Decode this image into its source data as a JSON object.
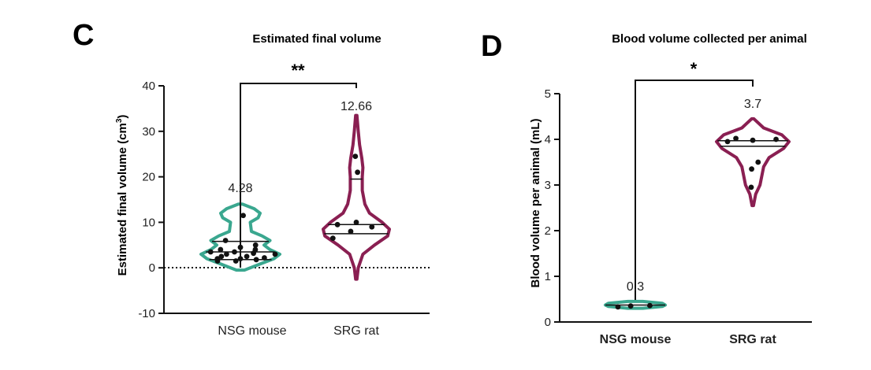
{
  "colors": {
    "teal": "#3aa78f",
    "maroon": "#8a1f52",
    "axis": "#111111"
  },
  "chart_data": [
    {
      "panel": "C",
      "type": "violin",
      "title": "Estimated final volume",
      "ylabel_main": "Estimated final volume (cm",
      "ylabel_sup": "3",
      "ylabel_tail": ")",
      "xlabel": "",
      "ylim": [
        -10,
        40
      ],
      "yticks": [
        "-10",
        "0",
        "10",
        "20",
        "30",
        "40"
      ],
      "ytick_values": [
        -10,
        0,
        10,
        20,
        30,
        40
      ],
      "reference_line": 0,
      "significance": "**",
      "categories": [
        "NSG mouse",
        "SRG rat"
      ],
      "series": [
        {
          "category": "NSG mouse",
          "color": "#3aa78f",
          "label": "4.28",
          "range": [
            -0.5,
            14
          ],
          "quartiles": [
            1.8,
            3.5,
            5.8
          ],
          "points": [
            1.5,
            1.5,
            1.8,
            2.0,
            2.0,
            2.2,
            2.5,
            2.5,
            3.0,
            3.0,
            3.2,
            3.5,
            3.5,
            4.0,
            4.0,
            4.5,
            5.0,
            6.0,
            11.5
          ],
          "shape": [
            [
              -0.5,
              0.1
            ],
            [
              1,
              0.55
            ],
            [
              2,
              0.85
            ],
            [
              3,
              1.0
            ],
            [
              4,
              0.75
            ],
            [
              5,
              0.6
            ],
            [
              6,
              0.75
            ],
            [
              7,
              0.55
            ],
            [
              8,
              0.28
            ],
            [
              10,
              0.25
            ],
            [
              11,
              0.45
            ],
            [
              12,
              0.5
            ],
            [
              13,
              0.35
            ],
            [
              14,
              0.05
            ]
          ]
        },
        {
          "category": "SRG rat",
          "color": "#8a1f52",
          "label": "12.66",
          "range": [
            -2.5,
            33.5
          ],
          "quartiles": [
            7.5,
            9.5,
            19.5
          ],
          "points": [
            6.5,
            8.0,
            9.0,
            9.5,
            10.0,
            21.0,
            24.5
          ],
          "shape": [
            [
              -2.5,
              0.02
            ],
            [
              0,
              0.06
            ],
            [
              3,
              0.2
            ],
            [
              5,
              0.55
            ],
            [
              7,
              0.95
            ],
            [
              8.5,
              1.0
            ],
            [
              10,
              0.78
            ],
            [
              12,
              0.4
            ],
            [
              14,
              0.26
            ],
            [
              17,
              0.18
            ],
            [
              20,
              0.18
            ],
            [
              22,
              0.2
            ],
            [
              24,
              0.17
            ],
            [
              27,
              0.1
            ],
            [
              30,
              0.06
            ],
            [
              33.5,
              0.02
            ]
          ]
        }
      ]
    },
    {
      "panel": "D",
      "type": "violin",
      "title": "Blood volume collected per animal",
      "ylabel_main": "Blood volume per animal (mL)",
      "xlabel": "",
      "ylim": [
        0,
        5
      ],
      "yticks": [
        "0",
        "1",
        "2",
        "3",
        "4",
        "5"
      ],
      "ytick_values": [
        0,
        1,
        2,
        3,
        4,
        5
      ],
      "significance": "*",
      "categories": [
        "NSG mouse",
        "SRG rat"
      ],
      "series": [
        {
          "category": "NSG mouse",
          "color": "#3aa78f",
          "label": "0.3",
          "range": [
            0.3,
            0.45
          ],
          "quartiles": [
            0.37
          ],
          "points": [
            0.33,
            0.35,
            0.36
          ],
          "shape": [
            [
              0.3,
              0.25
            ],
            [
              0.34,
              0.9
            ],
            [
              0.37,
              1.0
            ],
            [
              0.41,
              0.9
            ],
            [
              0.45,
              0.25
            ]
          ]
        },
        {
          "category": "SRG rat",
          "color": "#8a1f52",
          "label": "3.7",
          "range": [
            2.55,
            4.45
          ],
          "quartiles": [
            3.85,
            3.97
          ],
          "points": [
            2.95,
            3.35,
            3.5,
            3.95,
            3.98,
            4.0,
            4.02
          ],
          "shape": [
            [
              2.55,
              0.02
            ],
            [
              2.8,
              0.08
            ],
            [
              3.0,
              0.2
            ],
            [
              3.2,
              0.25
            ],
            [
              3.4,
              0.3
            ],
            [
              3.6,
              0.45
            ],
            [
              3.8,
              0.85
            ],
            [
              3.95,
              1.0
            ],
            [
              4.1,
              0.8
            ],
            [
              4.25,
              0.3
            ],
            [
              4.45,
              0.03
            ]
          ]
        }
      ]
    }
  ]
}
